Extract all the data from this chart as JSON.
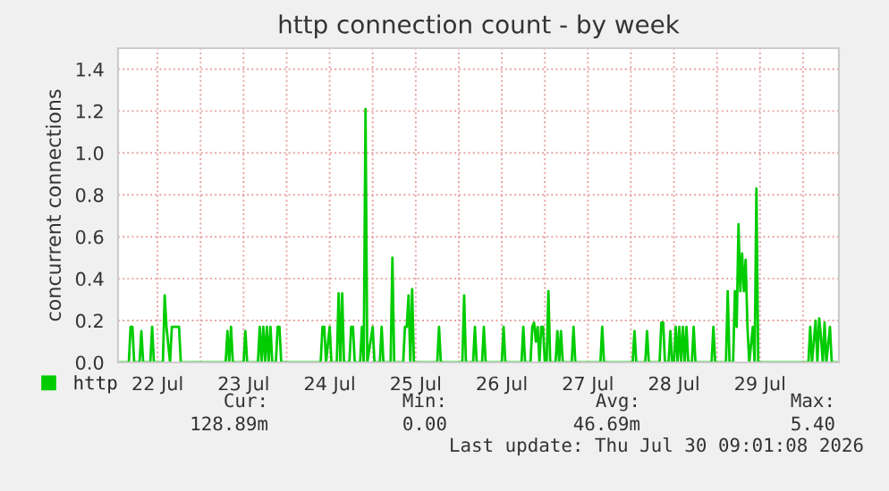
{
  "chart_data": {
    "type": "line",
    "title": "http connection count - by week",
    "ylabel": "concurrent connections",
    "xlim": [
      "2026-07-22T01:00",
      "2026-07-30T10:00"
    ],
    "ylim": [
      0,
      1.5
    ],
    "yticks": [
      {
        "value": 0,
        "label": "0.0"
      },
      {
        "value": 0.2,
        "label": "0.2"
      },
      {
        "value": 0.4,
        "label": "0.4"
      },
      {
        "value": 0.6,
        "label": "0.6"
      },
      {
        "value": 0.8,
        "label": "0.8"
      },
      {
        "value": 1.0,
        "label": "1.0"
      },
      {
        "value": 1.2,
        "label": "1.2"
      },
      {
        "value": 1.4,
        "label": "1.4"
      }
    ],
    "xticks": [
      {
        "value": "2026-07-22T12:00",
        "label": "22 Jul"
      },
      {
        "value": "2026-07-23T00:00",
        "label": null
      },
      {
        "value": "2026-07-23T12:00",
        "label": "23 Jul"
      },
      {
        "value": "2026-07-24T00:00",
        "label": null
      },
      {
        "value": "2026-07-24T12:00",
        "label": "24 Jul"
      },
      {
        "value": "2026-07-25T00:00",
        "label": null
      },
      {
        "value": "2026-07-25T12:00",
        "label": "25 Jul"
      },
      {
        "value": "2026-07-26T00:00",
        "label": null
      },
      {
        "value": "2026-07-26T12:00",
        "label": "26 Jul"
      },
      {
        "value": "2026-07-27T00:00",
        "label": null
      },
      {
        "value": "2026-07-27T12:00",
        "label": "27 Jul"
      },
      {
        "value": "2026-07-28T00:00",
        "label": null
      },
      {
        "value": "2026-07-28T12:00",
        "label": "28 Jul"
      },
      {
        "value": "2026-07-29T00:00",
        "label": null
      },
      {
        "value": "2026-07-29T12:00",
        "label": "29 Jul"
      },
      {
        "value": "2026-07-30T00:00",
        "label": null
      }
    ],
    "grid": true,
    "legend": "bottom",
    "marker": "none",
    "line_style": "solid",
    "annotations": [
      "Cur:",
      "Min:",
      "Avg:",
      "Max:",
      "128.89m",
      "0.00",
      "46.69m",
      "5.40",
      "Last update: Thu Jul 30 09:01:08 2026"
    ],
    "series": [
      {
        "name": "http",
        "color": "#00cc00",
        "x": [
          "2026-07-22T01:00",
          "2026-07-22T04:00",
          "2026-07-22T04:30",
          "2026-07-22T05:00",
          "2026-07-22T05:30",
          "2026-07-22T07:00",
          "2026-07-22T07:30",
          "2026-07-22T08:00",
          "2026-07-22T10:00",
          "2026-07-22T10:30",
          "2026-07-22T11:00",
          "2026-07-22T13:30",
          "2026-07-22T14:00",
          "2026-07-22T14:30",
          "2026-07-22T15:30",
          "2026-07-22T16:00",
          "2026-07-22T18:00",
          "2026-07-22T18:30",
          "2026-07-23T07:00",
          "2026-07-23T07:30",
          "2026-07-23T08:00",
          "2026-07-23T08:30",
          "2026-07-23T09:00",
          "2026-07-23T12:00",
          "2026-07-23T12:30",
          "2026-07-23T13:00",
          "2026-07-23T16:00",
          "2026-07-23T16:30",
          "2026-07-23T17:00",
          "2026-07-23T17:30",
          "2026-07-23T18:00",
          "2026-07-23T18:30",
          "2026-07-23T19:00",
          "2026-07-23T19:30",
          "2026-07-23T20:00",
          "2026-07-23T21:00",
          "2026-07-23T21:30",
          "2026-07-23T22:00",
          "2026-07-23T22:30",
          "2026-07-24T09:30",
          "2026-07-24T10:00",
          "2026-07-24T10:30",
          "2026-07-24T11:00",
          "2026-07-24T12:00",
          "2026-07-24T12:30",
          "2026-07-24T14:00",
          "2026-07-24T14:30",
          "2026-07-24T15:00",
          "2026-07-24T15:30",
          "2026-07-24T16:00",
          "2026-07-24T17:30",
          "2026-07-24T18:00",
          "2026-07-24T18:30",
          "2026-07-24T19:00",
          "2026-07-24T20:30",
          "2026-07-24T21:00",
          "2026-07-24T21:30",
          "2026-07-24T22:00",
          "2026-07-24T22:30",
          "2026-07-25T00:00",
          "2026-07-25T00:30",
          "2026-07-25T02:00",
          "2026-07-25T02:30",
          "2026-07-25T03:00",
          "2026-07-25T05:00",
          "2026-07-25T05:30",
          "2026-07-25T06:00",
          "2026-07-25T08:30",
          "2026-07-25T09:00",
          "2026-07-25T09:30",
          "2026-07-25T10:00",
          "2026-07-25T10:30",
          "2026-07-25T11:00",
          "2026-07-25T11:30",
          "2026-07-25T18:00",
          "2026-07-25T18:30",
          "2026-07-25T19:00",
          "2026-07-26T01:00",
          "2026-07-26T01:30",
          "2026-07-26T02:00",
          "2026-07-26T04:00",
          "2026-07-26T04:30",
          "2026-07-26T05:00",
          "2026-07-26T06:30",
          "2026-07-26T07:00",
          "2026-07-26T07:30",
          "2026-07-26T12:00",
          "2026-07-26T12:30",
          "2026-07-26T13:00",
          "2026-07-26T17:30",
          "2026-07-26T18:00",
          "2026-07-26T18:30",
          "2026-07-26T20:00",
          "2026-07-26T20:30",
          "2026-07-26T21:00",
          "2026-07-26T21:30",
          "2026-07-26T22:00",
          "2026-07-26T22:30",
          "2026-07-26T23:00",
          "2026-07-26T23:30",
          "2026-07-27T00:00",
          "2026-07-27T00:30",
          "2026-07-27T01:00",
          "2026-07-27T01:30",
          "2026-07-27T03:00",
          "2026-07-27T03:30",
          "2026-07-27T04:00",
          "2026-07-27T04:30",
          "2026-07-27T05:00",
          "2026-07-27T07:30",
          "2026-07-27T08:00",
          "2026-07-27T08:30",
          "2026-07-27T15:30",
          "2026-07-27T16:00",
          "2026-07-27T16:30",
          "2026-07-28T00:30",
          "2026-07-28T01:00",
          "2026-07-28T01:30",
          "2026-07-28T04:00",
          "2026-07-28T04:30",
          "2026-07-28T05:00",
          "2026-07-28T08:00",
          "2026-07-28T08:30",
          "2026-07-28T09:00",
          "2026-07-28T09:30",
          "2026-07-28T10:30",
          "2026-07-28T11:00",
          "2026-07-28T11:30",
          "2026-07-28T12:00",
          "2026-07-28T12:30",
          "2026-07-28T13:00",
          "2026-07-28T13:30",
          "2026-07-28T14:00",
          "2026-07-28T14:30",
          "2026-07-28T15:00",
          "2026-07-28T15:30",
          "2026-07-28T16:00",
          "2026-07-28T17:00",
          "2026-07-28T17:30",
          "2026-07-28T18:00",
          "2026-07-28T22:30",
          "2026-07-28T23:00",
          "2026-07-28T23:30",
          "2026-07-29T02:30",
          "2026-07-29T03:00",
          "2026-07-29T03:30",
          "2026-07-29T04:30",
          "2026-07-29T05:00",
          "2026-07-29T05:30",
          "2026-07-29T06:00",
          "2026-07-29T06:30",
          "2026-07-29T07:00",
          "2026-07-29T07:30",
          "2026-07-29T08:00",
          "2026-07-29T08:30",
          "2026-07-29T09:00",
          "2026-07-29T10:00",
          "2026-07-29T10:30",
          "2026-07-29T11:00",
          "2026-07-29T11:30",
          "2026-07-30T01:30",
          "2026-07-30T02:00",
          "2026-07-30T02:30",
          "2026-07-30T03:30",
          "2026-07-30T04:00",
          "2026-07-30T04:30",
          "2026-07-30T05:00",
          "2026-07-30T05:30",
          "2026-07-30T06:00",
          "2026-07-30T06:30",
          "2026-07-30T07:30",
          "2026-07-30T08:00",
          "2026-07-30T10:00"
        ],
        "values": [
          0,
          0,
          0.17,
          0.17,
          0,
          0,
          0.15,
          0,
          0,
          0.17,
          0,
          0,
          0.32,
          0.17,
          0,
          0.17,
          0.17,
          0,
          0,
          0.15,
          0,
          0.17,
          0,
          0,
          0.15,
          0,
          0,
          0.17,
          0,
          0.17,
          0,
          0.17,
          0,
          0.17,
          0,
          0,
          0.17,
          0.17,
          0,
          0,
          0.17,
          0.17,
          0,
          0.17,
          0,
          0,
          0.33,
          0,
          0.33,
          0,
          0,
          0.17,
          0.17,
          0,
          0,
          0.17,
          0,
          1.21,
          0,
          0.17,
          0,
          0,
          0.17,
          0,
          0,
          0.5,
          0,
          0,
          0.17,
          0.17,
          0.32,
          0,
          0.35,
          0,
          0,
          0.17,
          0,
          0,
          0.32,
          0,
          0,
          0.17,
          0,
          0,
          0.17,
          0,
          0,
          0.17,
          0,
          0,
          0.17,
          0,
          0,
          0.17,
          0.19,
          0.1,
          0.17,
          0,
          0.17,
          0.17,
          0,
          0,
          0.34,
          0,
          0,
          0.15,
          0,
          0.15,
          0,
          0,
          0.17,
          0,
          0,
          0.17,
          0,
          0,
          0.15,
          0,
          0,
          0.15,
          0,
          0,
          0.19,
          0.19,
          0,
          0,
          0.15,
          0,
          0,
          0.17,
          0,
          0.17,
          0,
          0.17,
          0,
          0.17,
          0,
          0,
          0.17,
          0,
          0,
          0.17,
          0,
          0,
          0.34,
          0,
          0,
          0.34,
          0.17,
          0.66,
          0.34,
          0.52,
          0.34,
          0.49,
          0.17,
          0,
          0.17,
          0,
          0.83,
          0,
          0,
          0.17,
          0,
          0.2,
          0,
          0.21,
          0.12,
          0,
          0.19,
          0,
          0.17,
          0,
          0
        ]
      }
    ]
  }
}
